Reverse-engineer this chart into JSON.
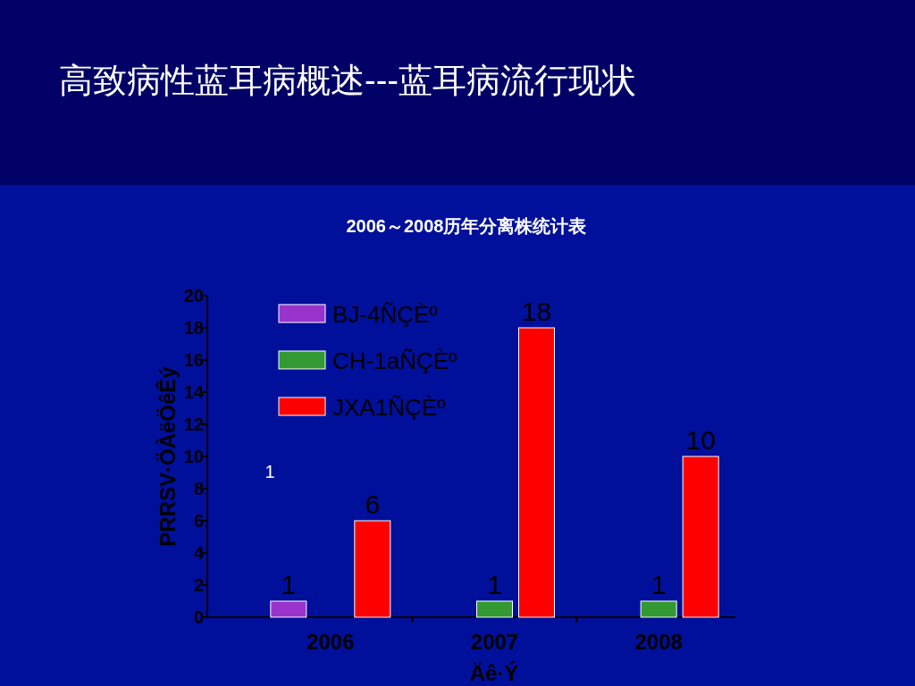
{
  "chart_data": {
    "type": "bar",
    "title": "高致病性蓝耳病概述---蓝耳病流行现状",
    "subtitle": "2006～2008历年分离株统计表",
    "xlabel": "Äê·Ý",
    "ylabel": "PRRSV·ÖÀëÖêÊý",
    "categories": [
      "2006",
      "2007",
      "2008"
    ],
    "series": [
      {
        "name": "BJ-4ÑÇÈº",
        "color": "#9933cc",
        "values": [
          1,
          null,
          null
        ]
      },
      {
        "name": "CH-1aÑÇÈº",
        "color": "#339933",
        "values": [
          null,
          1,
          1
        ]
      },
      {
        "name": "JXA1ÑÇÈº",
        "color": "#ff0000",
        "values": [
          6,
          18,
          10
        ]
      }
    ],
    "ylim": [
      0,
      20
    ],
    "yticks": [
      0,
      2,
      4,
      6,
      8,
      10,
      12,
      14,
      16,
      18,
      20
    ],
    "data_labels": true,
    "legend": "top left",
    "grid": false,
    "annotations": [
      "1"
    ]
  }
}
